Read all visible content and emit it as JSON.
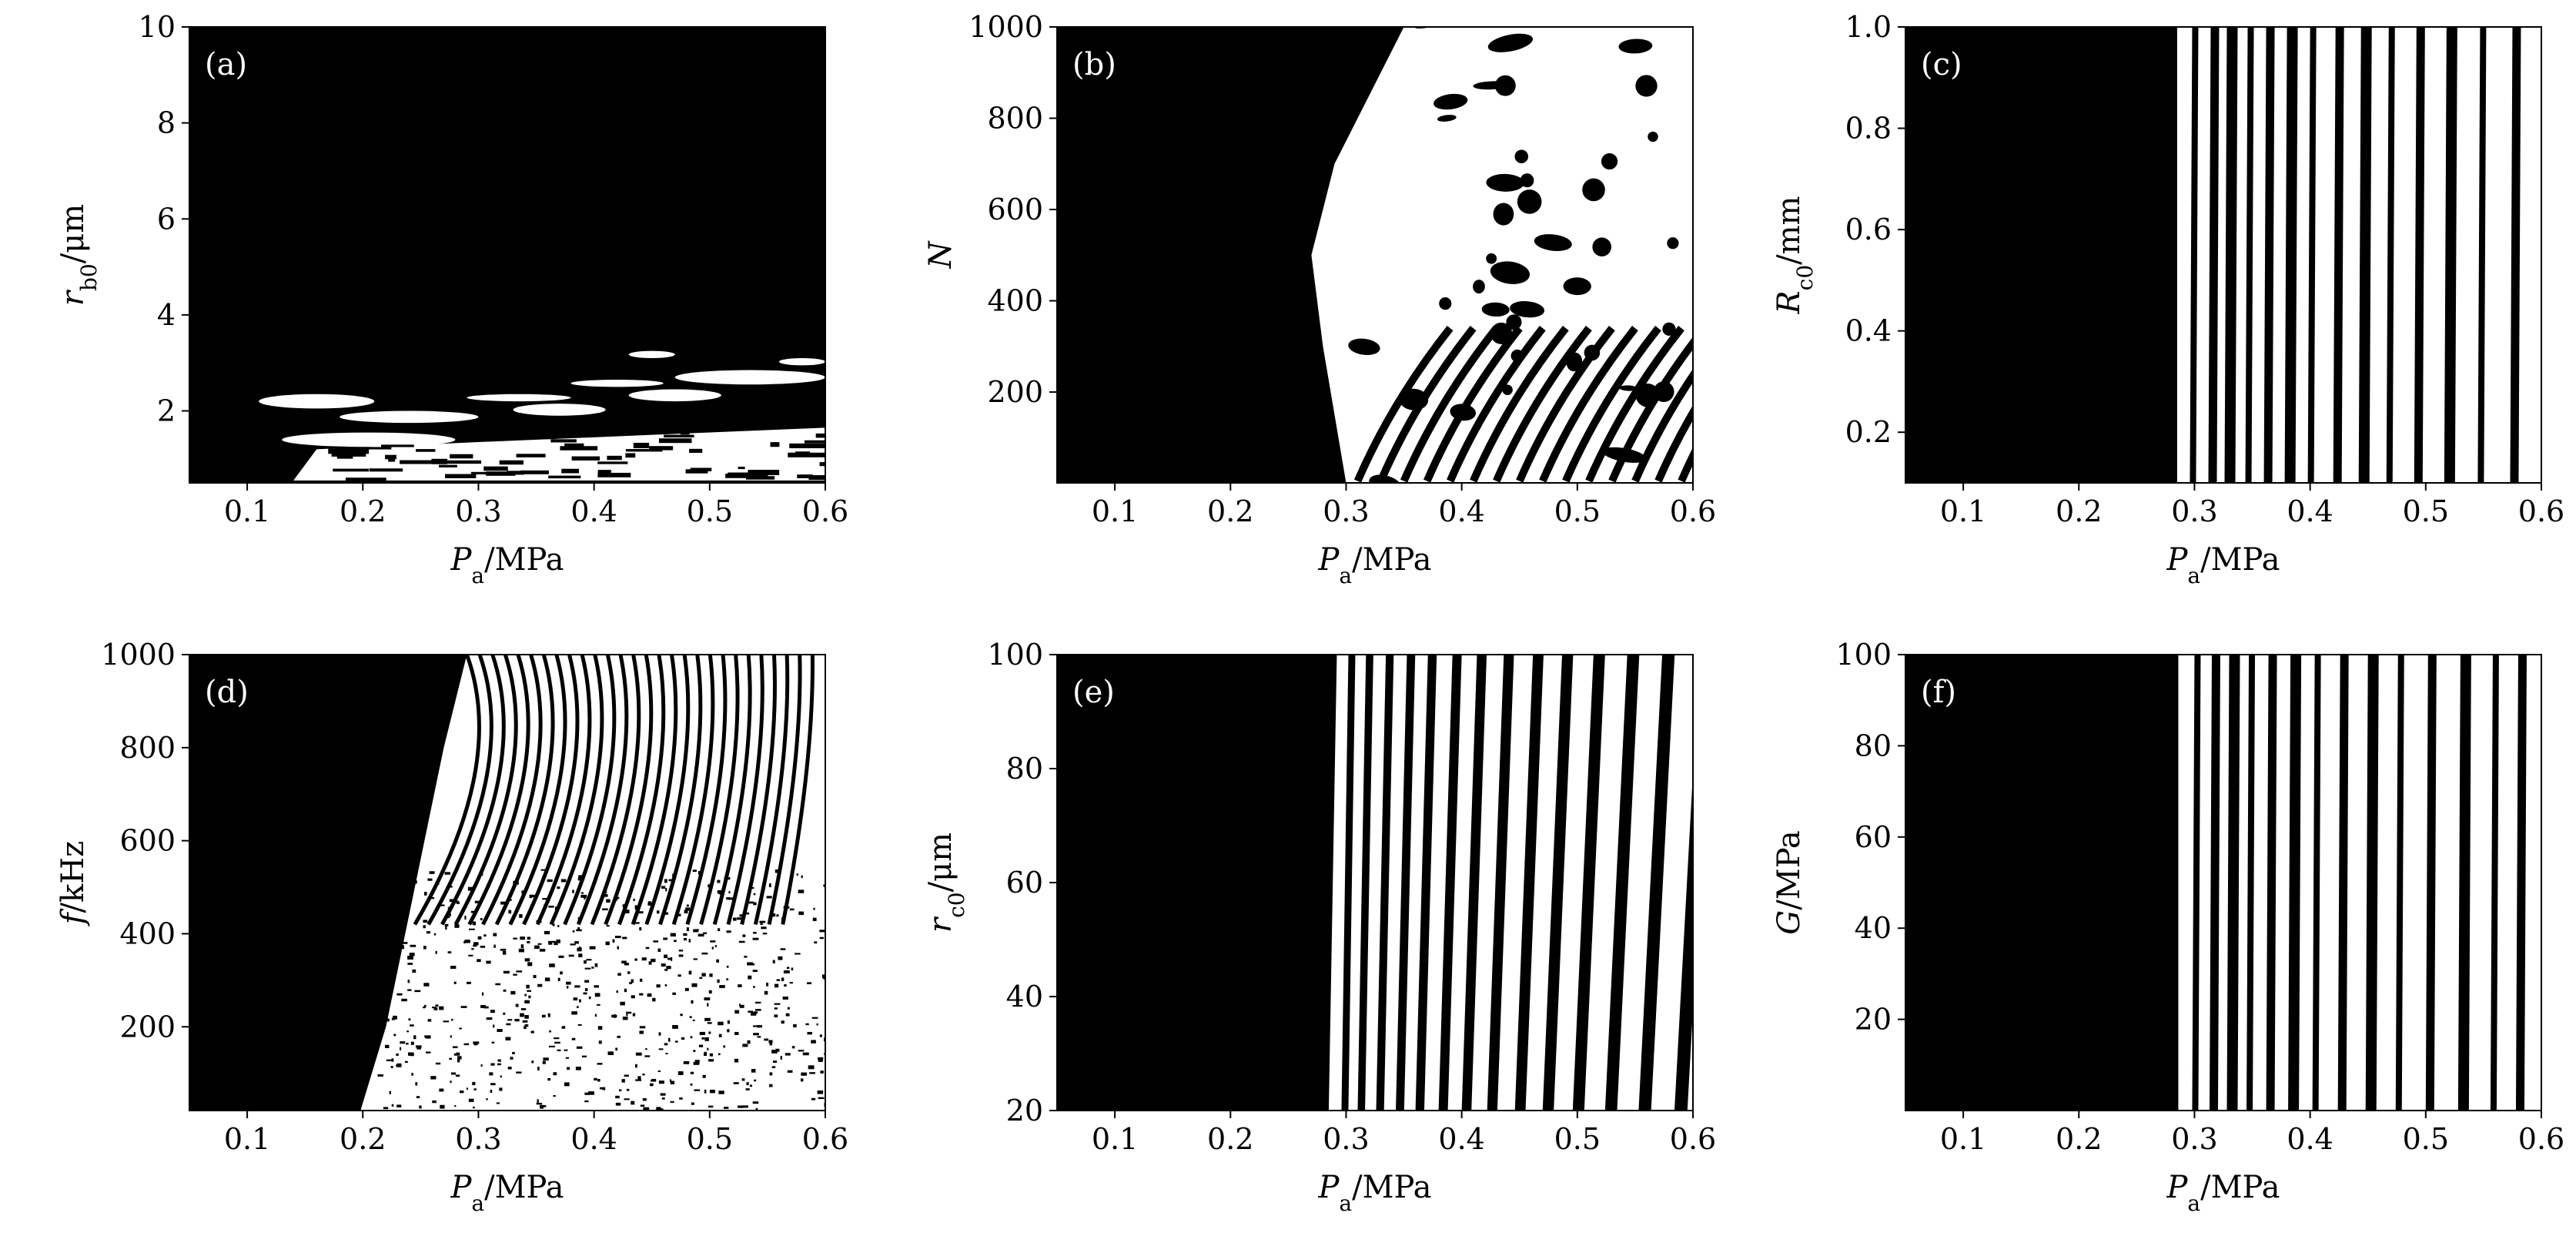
{
  "chart_data": [
    {
      "type": "heatmap",
      "label": "(a)",
      "xlabel": {
        "symbol": "P",
        "sub": "a",
        "unit": "/MPa"
      },
      "ylabel": {
        "symbol": "r",
        "sub": "b0",
        "unit": "/μm"
      },
      "xlim": [
        0.05,
        0.6
      ],
      "ylim": [
        0.5,
        10
      ],
      "xticks": [
        "0.1",
        "0.2",
        "0.3",
        "0.4",
        "0.5",
        "0.6"
      ],
      "yticks": [
        "2",
        "4",
        "6",
        "8",
        "10"
      ],
      "colors": {
        "background": "#000000",
        "region": "#ffffff"
      },
      "regions": [
        {
          "kind": "bubble",
          "x": [
            0.11,
            0.21
          ],
          "y": [
            2.05,
            2.35
          ]
        },
        {
          "kind": "bubble",
          "x": [
            0.13,
            0.28
          ],
          "y": [
            1.25,
            1.55
          ]
        },
        {
          "kind": "bubble",
          "x": [
            0.18,
            0.3
          ],
          "y": [
            1.75,
            2.0
          ]
        },
        {
          "kind": "bubble",
          "x": [
            0.33,
            0.41
          ],
          "y": [
            1.9,
            2.15
          ]
        },
        {
          "kind": "bubble",
          "x": [
            0.43,
            0.51
          ],
          "y": [
            2.2,
            2.45
          ]
        },
        {
          "kind": "bubble",
          "x": [
            0.47,
            0.6
          ],
          "y": [
            2.55,
            2.85
          ]
        },
        {
          "kind": "bubble",
          "x": [
            0.56,
            0.6
          ],
          "y": [
            2.95,
            3.1
          ]
        },
        {
          "kind": "bubble",
          "x": [
            0.43,
            0.47
          ],
          "y": [
            3.1,
            3.25
          ]
        },
        {
          "kind": "bubble",
          "x": [
            0.29,
            0.38
          ],
          "y": [
            2.2,
            2.35
          ]
        },
        {
          "kind": "bubble",
          "x": [
            0.38,
            0.46
          ],
          "y": [
            2.5,
            2.65
          ]
        },
        {
          "kind": "band",
          "x": [
            0.14,
            0.6
          ],
          "y": [
            0.55,
            1.7
          ]
        }
      ]
    },
    {
      "type": "heatmap",
      "label": "(b)",
      "xlabel": {
        "symbol": "P",
        "sub": "a",
        "unit": "/MPa"
      },
      "ylabel": {
        "symbol": "N",
        "sub": "",
        "unit": ""
      },
      "xlim": [
        0.05,
        0.6
      ],
      "ylim": [
        1,
        1000
      ],
      "xticks": [
        "0.1",
        "0.2",
        "0.3",
        "0.4",
        "0.5",
        "0.6"
      ],
      "yticks": [
        "200",
        "400",
        "600",
        "800",
        "1000"
      ],
      "colors": {
        "background": "#000000",
        "region": "#ffffff"
      },
      "regions": [
        {
          "kind": "onset-curve",
          "x_at_bottom": 0.3,
          "x_at_top": 0.35,
          "x_at_mid": 0.27
        },
        {
          "kind": "dark-curves",
          "count": 14,
          "x": [
            0.3,
            0.6
          ]
        }
      ]
    },
    {
      "type": "heatmap",
      "label": "(c)",
      "xlabel": {
        "symbol": "P",
        "sub": "a",
        "unit": "/MPa"
      },
      "ylabel": {
        "symbol": "R",
        "sub": "c0",
        "unit": "/mm"
      },
      "xlim": [
        0.05,
        0.6
      ],
      "ylim": [
        0.1,
        1.0
      ],
      "xticks": [
        "0.1",
        "0.2",
        "0.3",
        "0.4",
        "0.5",
        "0.6"
      ],
      "yticks": [
        "0.2",
        "0.4",
        "0.6",
        "0.8",
        "1.0"
      ],
      "colors": {
        "background": "#000000",
        "region": "#ffffff"
      },
      "threshold": 0.285,
      "dark_lines": [
        0.296,
        0.312,
        0.326,
        0.344,
        0.36,
        0.378,
        0.398,
        0.42,
        0.442,
        0.466,
        0.49,
        0.516,
        0.545,
        0.573,
        0.6
      ]
    },
    {
      "type": "heatmap",
      "label": "(d)",
      "xlabel": {
        "symbol": "P",
        "sub": "a",
        "unit": "/MPa"
      },
      "ylabel": {
        "symbol": "f",
        "sub": "",
        "unit": "/kHz"
      },
      "xlim": [
        0.05,
        0.6
      ],
      "ylim": [
        20,
        1000
      ],
      "xticks": [
        "0.1",
        "0.2",
        "0.3",
        "0.4",
        "0.5",
        "0.6"
      ],
      "yticks": [
        "200",
        "400",
        "600",
        "800",
        "1000"
      ],
      "colors": {
        "background": "#000000",
        "region": "#ffffff"
      },
      "threshold_curve": [
        [
          0.198,
          20
        ],
        [
          0.22,
          200
        ],
        [
          0.245,
          500
        ],
        [
          0.27,
          800
        ],
        [
          0.29,
          1000
        ]
      ],
      "dark_curves": 28
    },
    {
      "type": "heatmap",
      "label": "(e)",
      "xlabel": {
        "symbol": "P",
        "sub": "a",
        "unit": "/MPa"
      },
      "ylabel": {
        "symbol": "r",
        "sub": "c0",
        "unit": "/μm"
      },
      "xlim": [
        0.05,
        0.6
      ],
      "ylim": [
        20,
        100
      ],
      "xticks": [
        "0.1",
        "0.2",
        "0.3",
        "0.4",
        "0.5",
        "0.6"
      ],
      "yticks": [
        "20",
        "40",
        "60",
        "80",
        "100"
      ],
      "colors": {
        "background": "#000000",
        "region": "#ffffff"
      },
      "threshold": [
        0.285,
        0.292
      ],
      "dark_lines": [
        0.296,
        0.31,
        0.326,
        0.343,
        0.36,
        0.38,
        0.4,
        0.422,
        0.446,
        0.47,
        0.496,
        0.524,
        0.553,
        0.584
      ]
    },
    {
      "type": "heatmap",
      "label": "(f)",
      "xlabel": {
        "symbol": "P",
        "sub": "a",
        "unit": "/MPa"
      },
      "ylabel": {
        "symbol": "G",
        "sub": "",
        "unit": "/MPa"
      },
      "xlim": [
        0.05,
        0.6
      ],
      "ylim": [
        0,
        100
      ],
      "xticks": [
        "0.1",
        "0.2",
        "0.3",
        "0.4",
        "0.5",
        "0.6"
      ],
      "yticks": [
        "20",
        "40",
        "60",
        "80",
        "100"
      ],
      "colors": {
        "background": "#000000",
        "region": "#ffffff"
      },
      "threshold": 0.286,
      "dark_lines": [
        0.298,
        0.313,
        0.328,
        0.345,
        0.362,
        0.381,
        0.402,
        0.424,
        0.448,
        0.474,
        0.5,
        0.528,
        0.556,
        0.578
      ]
    }
  ]
}
